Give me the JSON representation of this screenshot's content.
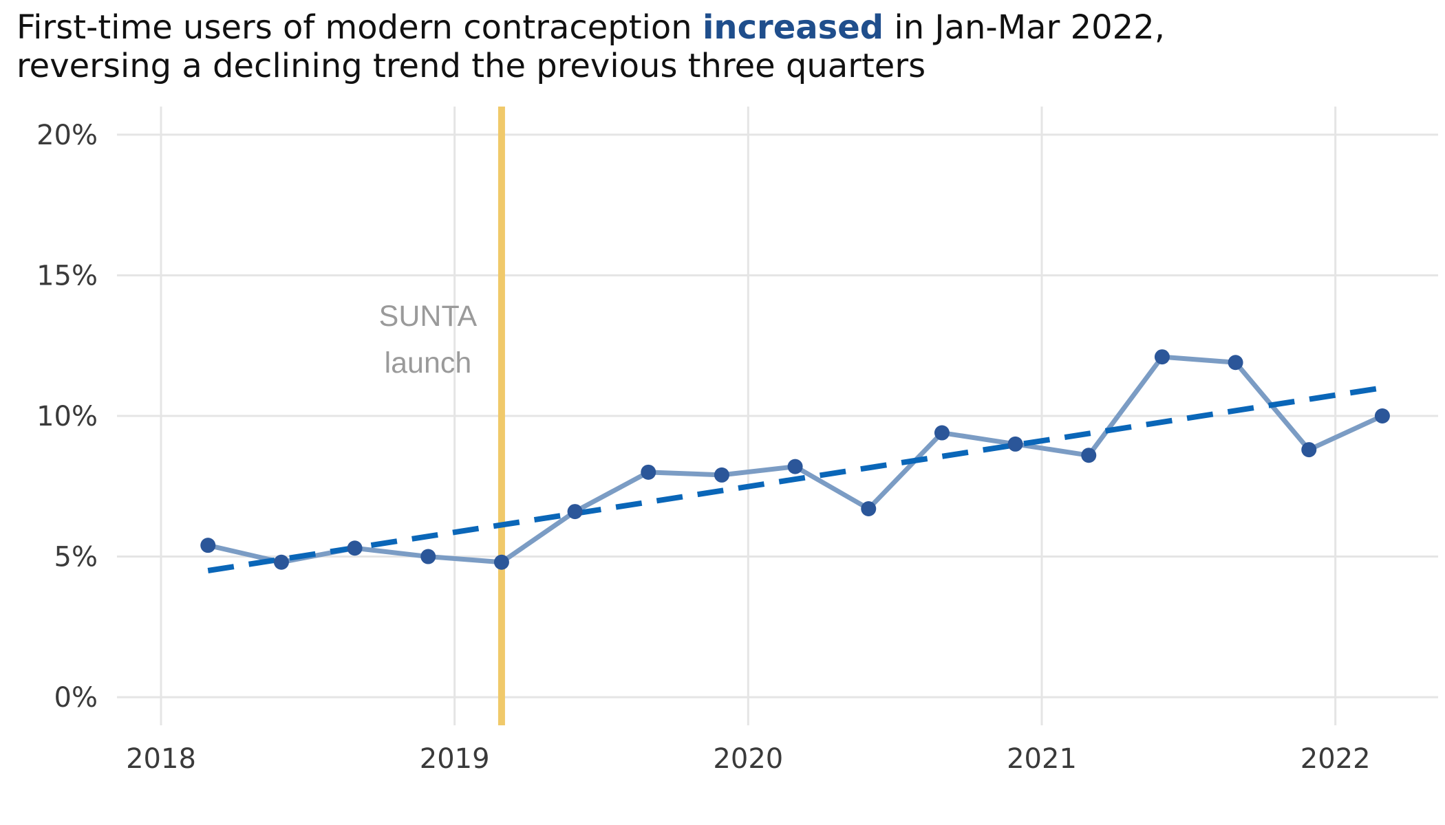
{
  "chart_data": {
    "type": "line",
    "title_parts": [
      {
        "text": "First-time users of modern contraception ",
        "highlight": false
      },
      {
        "text": "increased",
        "highlight": true
      },
      {
        "text": " in Jan-Mar 2022,",
        "highlight": false
      }
    ],
    "title_line2": "reversing a declining trend the previous three quarters",
    "xlabel": "",
    "ylabel": "",
    "x_ticks": [
      2018,
      2019,
      2020,
      2021,
      2022
    ],
    "y_ticks": [
      0,
      5,
      10,
      15,
      20
    ],
    "y_tick_labels": [
      "0%",
      "5%",
      "10%",
      "15%",
      "20%"
    ],
    "xlim": [
      2017.85,
      2022.35
    ],
    "ylim": [
      -1,
      21
    ],
    "grid": true,
    "series": [
      {
        "x": [
          2018.16,
          2018.41,
          2018.66,
          2018.91,
          2019.16,
          2019.41,
          2019.66,
          2019.91,
          2020.16,
          2020.41,
          2020.66,
          2020.91,
          2021.16,
          2021.41,
          2021.66,
          2021.91,
          2022.16
        ],
        "values": [
          5.4,
          4.8,
          5.3,
          5.0,
          4.8,
          6.6,
          8.0,
          7.9,
          8.2,
          6.7,
          9.4,
          9.0,
          8.6,
          12.1,
          11.9,
          8.8,
          10.0
        ]
      }
    ],
    "trend": {
      "x": [
        2018.16,
        2022.16
      ],
      "values": [
        4.5,
        11.0
      ],
      "style": "dashed"
    },
    "annotation": {
      "x": 2019.16,
      "label_lines": [
        "SUNTA",
        "launch"
      ]
    },
    "colors": {
      "series_line": "#7b9cc4",
      "series_point": "#2b5699",
      "trend": "#0a66b8",
      "annotation_line": "#f0c96a",
      "grid": "#e5e5e5",
      "title_highlight": "#1f4e8c"
    }
  }
}
